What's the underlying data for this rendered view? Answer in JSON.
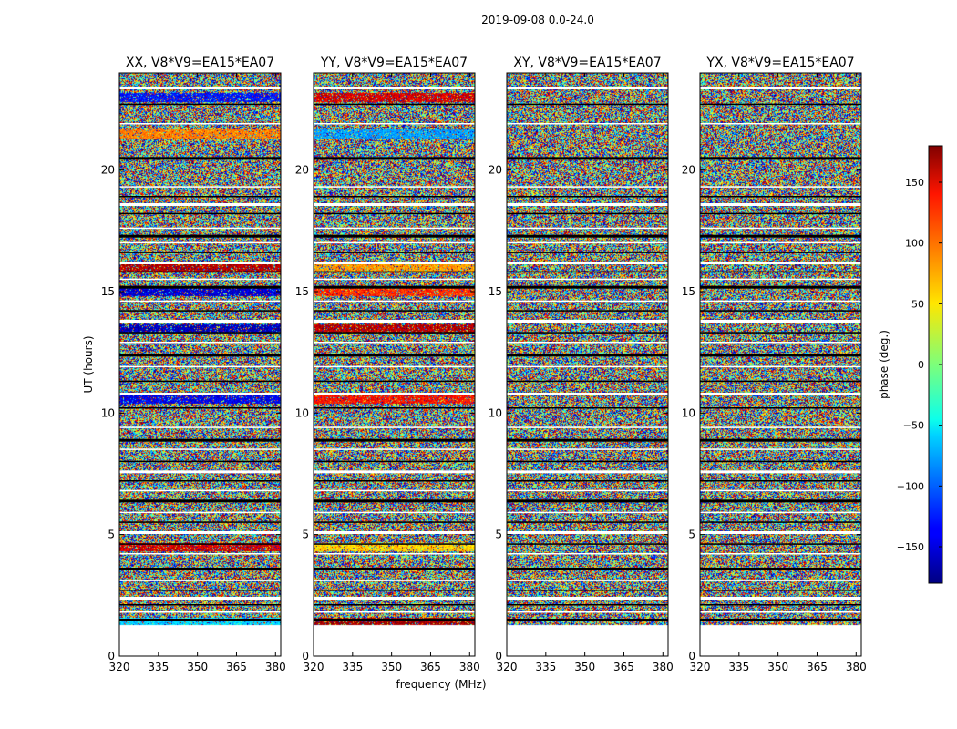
{
  "chart_data": {
    "type": "heatmap",
    "suptitle": "2019-09-08 0.0-24.0",
    "xlabel": "frequency (MHz)",
    "ylabel": "UT (hours)",
    "xlim": [
      320,
      382
    ],
    "ylim": [
      0,
      24
    ],
    "xticks": [
      "320",
      "335",
      "350",
      "365",
      "380"
    ],
    "yticks": [
      "0",
      "5",
      "10",
      "15",
      "20"
    ],
    "data_extent_hours": [
      1.3,
      24
    ],
    "panels": [
      {
        "title": "XX, V8*V9=EA15*EA07",
        "features": [
          {
            "ut": 23.0,
            "phase": -130,
            "note": "coherent band"
          },
          {
            "ut": 21.5,
            "phase": 90,
            "note": "coherent band (partial)"
          },
          {
            "ut": 16.0,
            "phase": 160,
            "note": "coherent band"
          },
          {
            "ut": 15.0,
            "phase": -150,
            "note": "coherent band"
          },
          {
            "ut": 13.5,
            "phase": -160,
            "note": "coherent band"
          },
          {
            "ut": 10.6,
            "phase": -140,
            "note": "coherent band"
          },
          {
            "ut": 4.5,
            "phase": 150,
            "note": "coherent band"
          },
          {
            "ut": 1.4,
            "phase": -60,
            "note": "coherent band"
          }
        ]
      },
      {
        "title": "YY, V8*V9=EA15*EA07",
        "features": [
          {
            "ut": 23.0,
            "phase": 150,
            "note": "coherent band"
          },
          {
            "ut": 21.5,
            "phase": -80,
            "note": "coherent band (partial)"
          },
          {
            "ut": 16.0,
            "phase": 80,
            "note": "coherent band"
          },
          {
            "ut": 15.0,
            "phase": 120,
            "note": "coherent band"
          },
          {
            "ut": 13.5,
            "phase": 160,
            "note": "coherent band"
          },
          {
            "ut": 10.6,
            "phase": 130,
            "note": "coherent band"
          },
          {
            "ut": 4.5,
            "phase": 60,
            "note": "coherent band"
          },
          {
            "ut": 1.4,
            "phase": 170,
            "note": "coherent band"
          }
        ]
      },
      {
        "title": "XY, V8*V9=EA15*EA07",
        "features": []
      },
      {
        "title": "YX, V8*V9=EA15*EA07",
        "features": []
      }
    ],
    "flagged_gaps_hours": [
      23.4,
      22.7,
      21.9,
      20.5,
      19.3,
      18.9,
      18.6,
      18.2,
      17.6,
      17.3,
      17.0,
      16.6,
      16.2,
      15.8,
      15.5,
      15.2,
      14.6,
      14.2,
      13.8,
      13.3,
      12.9,
      12.4,
      11.9,
      11.3,
      10.8,
      10.2,
      9.4,
      8.9,
      8.5,
      8.0,
      7.6,
      7.2,
      6.8,
      6.4,
      5.9,
      5.5,
      5.1,
      4.6,
      4.2,
      3.6,
      3.1,
      2.7,
      2.4,
      2.1,
      1.8,
      1.5
    ],
    "colorbar": {
      "label": "phase (deg.)",
      "range": [
        -180,
        180
      ],
      "ticks": [
        "150",
        "100",
        "50",
        "0",
        "−50",
        "−100",
        "−150"
      ],
      "tick_values": [
        150,
        100,
        50,
        0,
        -50,
        -100,
        -150
      ]
    }
  }
}
